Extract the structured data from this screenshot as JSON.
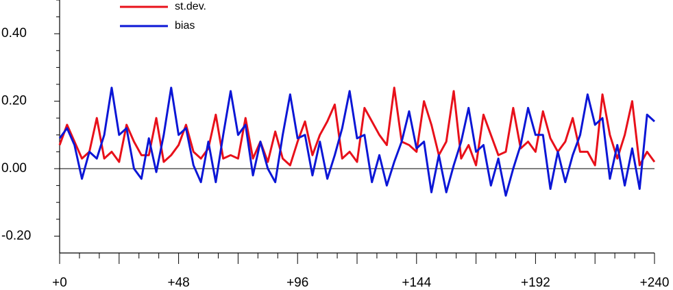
{
  "chart_data": {
    "type": "line",
    "x": [
      0,
      3,
      6,
      9,
      12,
      15,
      18,
      21,
      24,
      27,
      30,
      33,
      36,
      39,
      42,
      45,
      48,
      51,
      54,
      57,
      60,
      63,
      66,
      69,
      72,
      75,
      78,
      81,
      84,
      87,
      90,
      93,
      96,
      99,
      102,
      105,
      108,
      111,
      114,
      117,
      120,
      123,
      126,
      129,
      132,
      135,
      138,
      141,
      144,
      147,
      150,
      153,
      156,
      159,
      162,
      165,
      168,
      171,
      174,
      177,
      180,
      183,
      186,
      189,
      192,
      195,
      198,
      201,
      204,
      207,
      210,
      213,
      216,
      219,
      222,
      225,
      228,
      231,
      234,
      237,
      240
    ],
    "series": [
      {
        "name": "st.dev.",
        "color": "#e8101a",
        "values": [
          0.07,
          0.13,
          0.08,
          0.03,
          0.05,
          0.15,
          0.03,
          0.05,
          0.02,
          0.13,
          0.08,
          0.04,
          0.04,
          0.15,
          0.02,
          0.04,
          0.07,
          0.13,
          0.05,
          0.03,
          0.06,
          0.16,
          0.03,
          0.04,
          0.03,
          0.15,
          0.03,
          0.08,
          0.02,
          0.11,
          0.03,
          0.01,
          0.08,
          0.14,
          0.04,
          0.1,
          0.14,
          0.19,
          0.03,
          0.05,
          0.02,
          0.18,
          0.14,
          0.1,
          0.07,
          0.24,
          0.08,
          0.07,
          0.05,
          0.2,
          0.13,
          0.04,
          0.08,
          0.23,
          0.03,
          0.07,
          0.01,
          0.16,
          0.1,
          0.04,
          0.05,
          0.18,
          0.06,
          0.08,
          0.05,
          0.17,
          0.09,
          0.05,
          0.08,
          0.15,
          0.05,
          0.05,
          0.01,
          0.22,
          0.1,
          0.03,
          0.1,
          0.2,
          0.01,
          0.05,
          0.02
        ]
      },
      {
        "name": "bias",
        "color": "#0b16d6",
        "values": [
          0.09,
          0.12,
          0.07,
          -0.03,
          0.05,
          0.03,
          0.1,
          0.24,
          0.1,
          0.12,
          0.0,
          -0.03,
          0.09,
          -0.01,
          0.1,
          0.24,
          0.1,
          0.12,
          0.01,
          -0.04,
          0.08,
          -0.04,
          0.1,
          0.23,
          0.1,
          0.13,
          -0.02,
          0.08,
          0.0,
          -0.04,
          0.1,
          0.22,
          0.09,
          0.1,
          -0.02,
          0.08,
          -0.03,
          0.04,
          0.12,
          0.23,
          0.09,
          0.1,
          -0.04,
          0.04,
          -0.05,
          0.02,
          0.08,
          0.17,
          0.06,
          0.08,
          -0.07,
          0.04,
          -0.07,
          0.01,
          0.08,
          0.18,
          0.05,
          0.07,
          -0.05,
          0.03,
          -0.08,
          0.0,
          0.07,
          0.18,
          0.1,
          0.1,
          -0.06,
          0.05,
          -0.04,
          0.04,
          0.1,
          0.22,
          0.13,
          0.15,
          -0.03,
          0.07,
          -0.05,
          0.06,
          -0.06,
          0.16,
          0.14
        ]
      }
    ],
    "xlim": [
      0,
      240
    ],
    "xticks": [
      {
        "value": 0,
        "label": "+0"
      },
      {
        "value": 48,
        "label": "+48"
      },
      {
        "value": 96,
        "label": "+96"
      },
      {
        "value": 144,
        "label": "+144"
      },
      {
        "value": 192,
        "label": "+192"
      },
      {
        "value": 240,
        "label": "+240"
      }
    ],
    "ylim": [
      -0.25,
      0.5
    ],
    "yticks": [
      {
        "value": -0.2,
        "label": "-0.20"
      },
      {
        "value": 0,
        "label": "0.00"
      },
      {
        "value": 0.2,
        "label": "0.20"
      },
      {
        "value": 0.4,
        "label": "0.40"
      }
    ],
    "zero_line": true,
    "legend": "top-left"
  }
}
